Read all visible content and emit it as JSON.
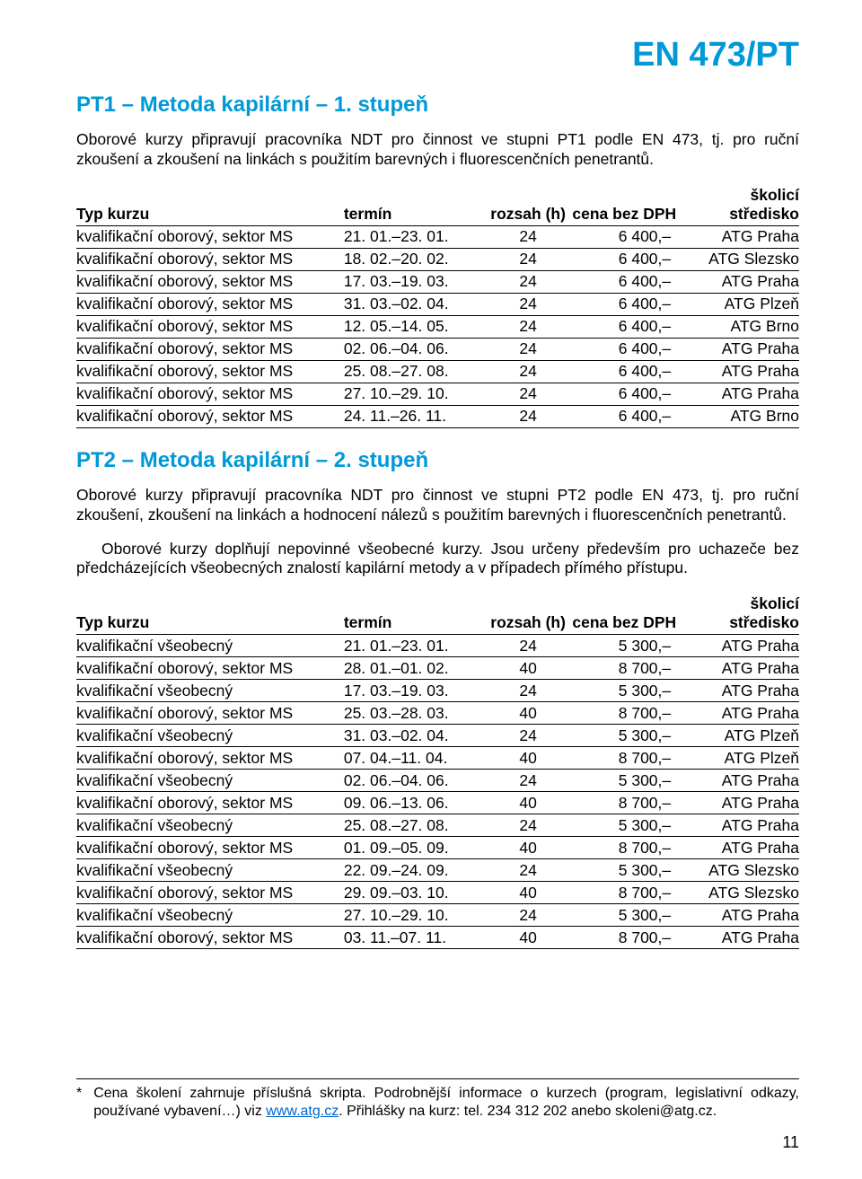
{
  "colors": {
    "accent": "#0099d8",
    "text": "#000000",
    "link": "#0066cc",
    "rule": "#000000",
    "background": "#ffffff"
  },
  "header_code": "EN 473/PT",
  "section1": {
    "title": "PT1 – Metoda kapilární – 1. stupeň",
    "intro": "Oborové kurzy připravují pracovníka NDT pro činnost ve stupni PT1 podle EN 473, tj. pro ruční zkoušení a zkoušení na linkách s použitím barevných i fluorescenčních penetrantů.",
    "table": {
      "columns": {
        "typ": "Typ kurzu",
        "termin": "termín",
        "rozsah": "rozsah (h)",
        "cena": "cena bez DPH",
        "stred": "školicí středisko"
      },
      "rows": [
        {
          "typ": "kvalifikační oborový, sektor MS",
          "termin": "21. 01.–23. 01.",
          "rozsah": "24",
          "cena": "6 400,–",
          "stred": "ATG Praha"
        },
        {
          "typ": "kvalifikační oborový, sektor MS",
          "termin": "18. 02.–20. 02.",
          "rozsah": "24",
          "cena": "6 400,–",
          "stred": "ATG Slezsko"
        },
        {
          "typ": "kvalifikační oborový, sektor MS",
          "termin": "17. 03.–19. 03.",
          "rozsah": "24",
          "cena": "6 400,–",
          "stred": "ATG Praha"
        },
        {
          "typ": "kvalifikační oborový, sektor MS",
          "termin": "31. 03.–02. 04.",
          "rozsah": "24",
          "cena": "6 400,–",
          "stred": "ATG Plzeň"
        },
        {
          "typ": "kvalifikační oborový, sektor MS",
          "termin": "12. 05.–14. 05.",
          "rozsah": "24",
          "cena": "6 400,–",
          "stred": "ATG Brno"
        },
        {
          "typ": "kvalifikační oborový, sektor MS",
          "termin": "02. 06.–04. 06.",
          "rozsah": "24",
          "cena": "6 400,–",
          "stred": "ATG Praha"
        },
        {
          "typ": "kvalifikační oborový, sektor MS",
          "termin": "25. 08.–27. 08.",
          "rozsah": "24",
          "cena": "6 400,–",
          "stred": "ATG Praha"
        },
        {
          "typ": "kvalifikační oborový, sektor MS",
          "termin": "27. 10.–29. 10.",
          "rozsah": "24",
          "cena": "6 400,–",
          "stred": "ATG Praha"
        },
        {
          "typ": "kvalifikační oborový, sektor MS",
          "termin": "24. 11.–26. 11.",
          "rozsah": "24",
          "cena": "6 400,–",
          "stred": "ATG Brno"
        }
      ]
    }
  },
  "section2": {
    "title": "PT2 – Metoda kapilární – 2. stupeň",
    "intro": "Oborové kurzy připravují pracovníka NDT pro činnost ve stupni PT2 podle EN 473, tj. pro ruční zkoušení, zkoušení na linkách a hodnocení nálezů s použitím barevných i fluorescenčních penetrantů.",
    "intro2": "Oborové kurzy doplňují nepovinné všeobecné kurzy. Jsou určeny především pro uchazeče bez předcházejících všeobecných znalostí kapilární metody a v případech přímého přístupu.",
    "table": {
      "columns": {
        "typ": "Typ kurzu",
        "termin": "termín",
        "rozsah": "rozsah (h)",
        "cena": "cena bez DPH",
        "stred": "školicí středisko"
      },
      "rows": [
        {
          "typ": "kvalifikační všeobecný",
          "termin": "21. 01.–23. 01.",
          "rozsah": "24",
          "cena": "5 300,–",
          "stred": "ATG Praha"
        },
        {
          "typ": "kvalifikační oborový, sektor MS",
          "termin": "28. 01.–01. 02.",
          "rozsah": "40",
          "cena": "8 700,–",
          "stred": "ATG Praha"
        },
        {
          "typ": "kvalifikační všeobecný",
          "termin": "17. 03.–19. 03.",
          "rozsah": "24",
          "cena": "5 300,–",
          "stred": "ATG Praha"
        },
        {
          "typ": "kvalifikační oborový, sektor MS",
          "termin": "25. 03.–28. 03.",
          "rozsah": "40",
          "cena": "8 700,–",
          "stred": "ATG Praha"
        },
        {
          "typ": "kvalifikační všeobecný",
          "termin": "31. 03.–02. 04.",
          "rozsah": "24",
          "cena": "5 300,–",
          "stred": "ATG Plzeň"
        },
        {
          "typ": "kvalifikační oborový, sektor MS",
          "termin": "07. 04.–11. 04.",
          "rozsah": "40",
          "cena": "8 700,–",
          "stred": "ATG Plzeň"
        },
        {
          "typ": "kvalifikační všeobecný",
          "termin": "02. 06.–04. 06.",
          "rozsah": "24",
          "cena": "5 300,–",
          "stred": "ATG Praha"
        },
        {
          "typ": "kvalifikační oborový, sektor MS",
          "termin": "09. 06.–13. 06.",
          "rozsah": "40",
          "cena": "8 700,–",
          "stred": "ATG Praha"
        },
        {
          "typ": "kvalifikační všeobecný",
          "termin": "25. 08.–27. 08.",
          "rozsah": "24",
          "cena": "5 300,–",
          "stred": "ATG Praha"
        },
        {
          "typ": "kvalifikační oborový, sektor MS",
          "termin": "01. 09.–05. 09.",
          "rozsah": "40",
          "cena": "8 700,–",
          "stred": "ATG Praha"
        },
        {
          "typ": "kvalifikační všeobecný",
          "termin": "22. 09.–24. 09.",
          "rozsah": "24",
          "cena": "5 300,–",
          "stred": "ATG Slezsko"
        },
        {
          "typ": "kvalifikační oborový, sektor MS",
          "termin": "29. 09.–03. 10.",
          "rozsah": "40",
          "cena": "8 700,–",
          "stred": "ATG Slezsko"
        },
        {
          "typ": "kvalifikační všeobecný",
          "termin": "27. 10.–29. 10.",
          "rozsah": "24",
          "cena": "5 300,–",
          "stred": "ATG Praha"
        },
        {
          "typ": "kvalifikační oborový, sektor MS",
          "termin": "03. 11.–07. 11.",
          "rozsah": "40",
          "cena": "8 700,–",
          "stred": "ATG Praha"
        }
      ]
    }
  },
  "footnote": {
    "mark": "*",
    "text_before_link": "Cena školení zahrnuje příslušná skripta. Podrobnější informace o kurzech (program, legislativní odkazy, používané vybavení…) viz ",
    "link_text": "www.atg.cz",
    "text_after_link": ". Přihlášky na kurz: tel. 234 312 202 anebo skoleni@atg.cz."
  },
  "page_number": "11"
}
